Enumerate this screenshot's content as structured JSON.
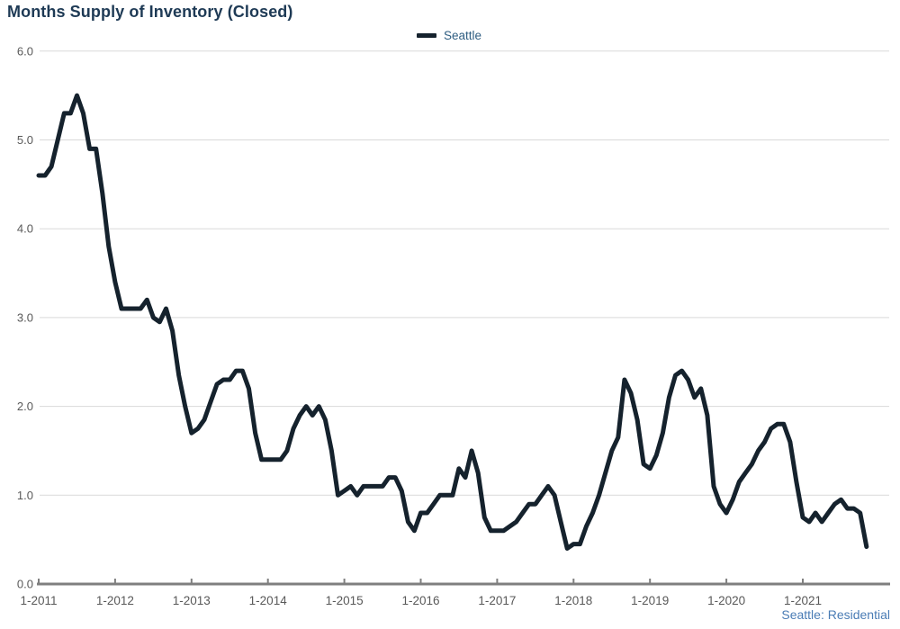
{
  "title": "Months Supply of Inventory (Closed)",
  "legend": {
    "label": "Seattle"
  },
  "footnote": "Seattle: Residential",
  "colors": {
    "background": "#FFFFFF",
    "title_text": "#1E3A55",
    "legend_text": "#2F5E82",
    "footnote_text": "#4A7CB5",
    "series_line": "#15222D",
    "axis_text": "#595959",
    "gridline": "#D9D9D9",
    "axis_line": "#7F7F7F"
  },
  "chart_data": {
    "type": "line",
    "title": "Months Supply of Inventory (Closed)",
    "xlabel": "",
    "ylabel": "",
    "ylim": [
      0,
      6
    ],
    "grid": "horizontal",
    "legend_position": "top-center",
    "frequency": "monthly",
    "x_start": "2011-01",
    "x_end": "2021-11",
    "x_tick_labels": [
      "1-2011",
      "1-2012",
      "1-2013",
      "1-2014",
      "1-2015",
      "1-2016",
      "1-2017",
      "1-2018",
      "1-2019",
      "1-2020",
      "1-2021"
    ],
    "y_ticks": [
      0,
      1,
      2,
      3,
      4,
      5,
      6
    ],
    "y_tick_labels": [
      "0.0",
      "1.0",
      "2.0",
      "3.0",
      "4.0",
      "5.0",
      "6.0"
    ],
    "series": [
      {
        "name": "Seattle",
        "values": [
          4.6,
          4.6,
          4.7,
          5.0,
          5.3,
          5.3,
          5.5,
          5.3,
          4.9,
          4.9,
          4.4,
          3.8,
          3.4,
          3.1,
          3.1,
          3.1,
          3.1,
          3.2,
          3.0,
          2.95,
          3.1,
          2.85,
          2.35,
          2.0,
          1.7,
          1.75,
          1.85,
          2.05,
          2.25,
          2.3,
          2.3,
          2.4,
          2.4,
          2.2,
          1.7,
          1.4,
          1.4,
          1.4,
          1.4,
          1.5,
          1.75,
          1.9,
          2.0,
          1.9,
          2.0,
          1.85,
          1.5,
          1.0,
          1.05,
          1.1,
          1.0,
          1.1,
          1.1,
          1.1,
          1.1,
          1.2,
          1.2,
          1.05,
          0.7,
          0.6,
          0.8,
          0.8,
          0.9,
          1.0,
          1.0,
          1.0,
          1.3,
          1.2,
          1.5,
          1.25,
          0.75,
          0.6,
          0.6,
          0.6,
          0.65,
          0.7,
          0.8,
          0.9,
          0.9,
          1.0,
          1.1,
          1.0,
          0.7,
          0.4,
          0.45,
          0.45,
          0.65,
          0.8,
          1.0,
          1.25,
          1.5,
          1.65,
          2.3,
          2.15,
          1.85,
          1.35,
          1.3,
          1.45,
          1.7,
          2.1,
          2.35,
          2.4,
          2.3,
          2.1,
          2.2,
          1.9,
          1.1,
          0.9,
          0.8,
          0.95,
          1.15,
          1.25,
          1.35,
          1.5,
          1.6,
          1.75,
          1.8,
          1.8,
          1.6,
          1.15,
          0.75,
          0.7,
          0.8,
          0.7,
          0.8,
          0.9,
          0.95,
          0.85,
          0.85,
          0.8,
          0.42
        ]
      }
    ]
  }
}
